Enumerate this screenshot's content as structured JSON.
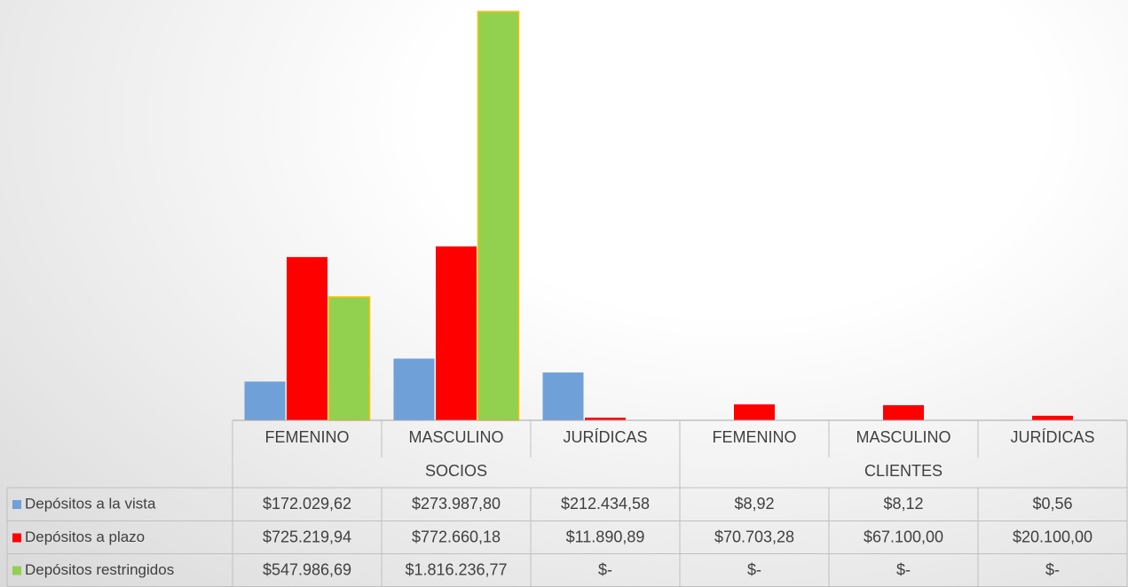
{
  "chart_data": {
    "type": "bar",
    "category_groups": [
      {
        "name": "SOCIOS",
        "categories": [
          "FEMENINO",
          "MASCULINO",
          "JURÍDICAS"
        ]
      },
      {
        "name": "CLIENTES",
        "categories": [
          "FEMENINO",
          "MASCULINO",
          "JURÍDICAS"
        ]
      }
    ],
    "series": [
      {
        "name": "Depósitos a la vista",
        "color": "#70a0d8",
        "values": [
          172029.62,
          273987.8,
          212434.58,
          8.92,
          8.12,
          0.56
        ],
        "value_labels": [
          "$172.029,62",
          "$273.987,80",
          "$212.434,58",
          "$8,92",
          "$8,12",
          "$0,56"
        ]
      },
      {
        "name": "Depósitos a plazo",
        "color": "#ff0000",
        "values": [
          725219.94,
          772660.18,
          11890.89,
          70703.28,
          67100.0,
          20100.0
        ],
        "value_labels": [
          "$725.219,94",
          "$772.660,18",
          "$11.890,89",
          "$70.703,28",
          "$67.100,00",
          "$20.100,00"
        ]
      },
      {
        "name": "Depósitos restringidos",
        "color": "#92d050",
        "border": "#ffc000",
        "values": [
          547986.69,
          1816236.77,
          0,
          0,
          0,
          0
        ],
        "value_labels": [
          "$547.986,69",
          "$1.816.236,77",
          "$-",
          "$-",
          "$-",
          "$-"
        ]
      }
    ]
  }
}
